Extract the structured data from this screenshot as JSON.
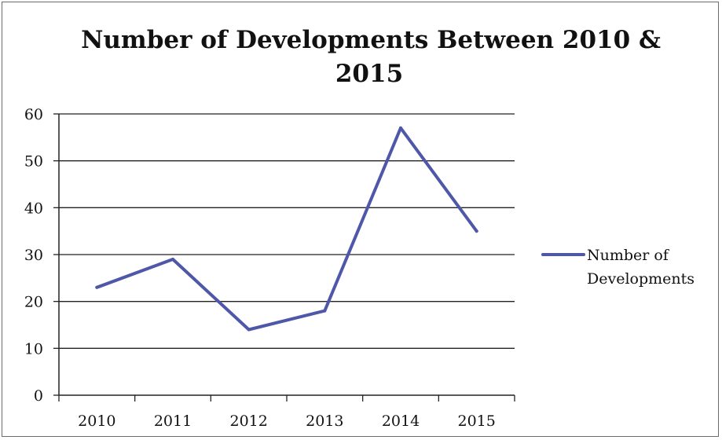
{
  "chart_data": {
    "type": "line",
    "title_lines": [
      "Number of Developments Between 2010 &",
      "2015"
    ],
    "categories": [
      "2010",
      "2011",
      "2012",
      "2013",
      "2014",
      "2015"
    ],
    "series": [
      {
        "name": "Number of Developments",
        "values": [
          23,
          29,
          14,
          18,
          57,
          35
        ]
      }
    ],
    "legend_lines": [
      "Number of",
      "Developments"
    ],
    "legend_position": "right",
    "ylim": [
      0,
      60
    ],
    "yticks": [
      "0",
      "10",
      "20",
      "30",
      "40",
      "50",
      "60"
    ],
    "xlabel": "",
    "ylabel": "",
    "grid": true,
    "colors": {
      "series": "#4e57a8",
      "grid": "#222222",
      "axis": "#222222"
    }
  }
}
